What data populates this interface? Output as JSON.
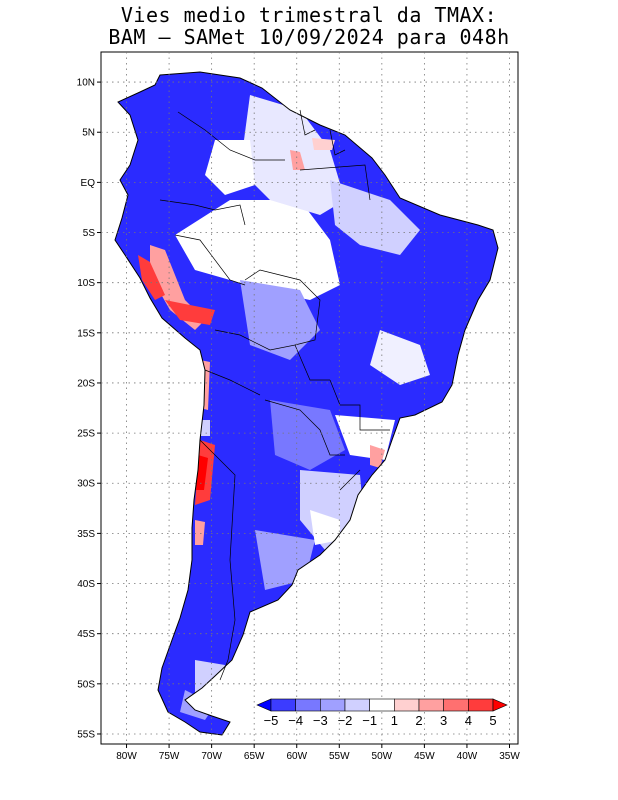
{
  "title_line1": "Vies medio trimestral da TMAX:",
  "title_line2": "BAM – SAMet 10/09/2024  para 048h",
  "map": {
    "lon_range": [
      -83,
      -34
    ],
    "lat_range": [
      -56,
      13
    ],
    "lat_ticks": [
      {
        "value": 10,
        "label": "10N"
      },
      {
        "value": 5,
        "label": "5N"
      },
      {
        "value": 0,
        "label": "EQ"
      },
      {
        "value": -5,
        "label": "5S"
      },
      {
        "value": -10,
        "label": "10S"
      },
      {
        "value": -15,
        "label": "15S"
      },
      {
        "value": -20,
        "label": "20S"
      },
      {
        "value": -25,
        "label": "25S"
      },
      {
        "value": -30,
        "label": "30S"
      },
      {
        "value": -35,
        "label": "35S"
      },
      {
        "value": -40,
        "label": "40S"
      },
      {
        "value": -45,
        "label": "45S"
      },
      {
        "value": -50,
        "label": "50S"
      },
      {
        "value": -55,
        "label": "55S"
      }
    ],
    "lon_ticks": [
      {
        "value": -80,
        "label": "80W"
      },
      {
        "value": -75,
        "label": "75W"
      },
      {
        "value": -70,
        "label": "70W"
      },
      {
        "value": -65,
        "label": "65W"
      },
      {
        "value": -60,
        "label": "60W"
      },
      {
        "value": -55,
        "label": "55W"
      },
      {
        "value": -50,
        "label": "50W"
      },
      {
        "value": -45,
        "label": "45W"
      },
      {
        "value": -40,
        "label": "40W"
      },
      {
        "value": -35,
        "label": "35W"
      }
    ],
    "grid": "dotted"
  },
  "colorbar": {
    "colors": [
      "#0000ff",
      "#3c3cff",
      "#7878ff",
      "#a0a0ff",
      "#d0d0ff",
      "#ffffff",
      "#ffd0d0",
      "#ffa0a0",
      "#ff7070",
      "#ff3c3c",
      "#ff0000"
    ],
    "labels": [
      "−5",
      "−4",
      "−3",
      "−2",
      "−1",
      "1",
      "2",
      "3",
      "4",
      "5"
    ]
  }
}
